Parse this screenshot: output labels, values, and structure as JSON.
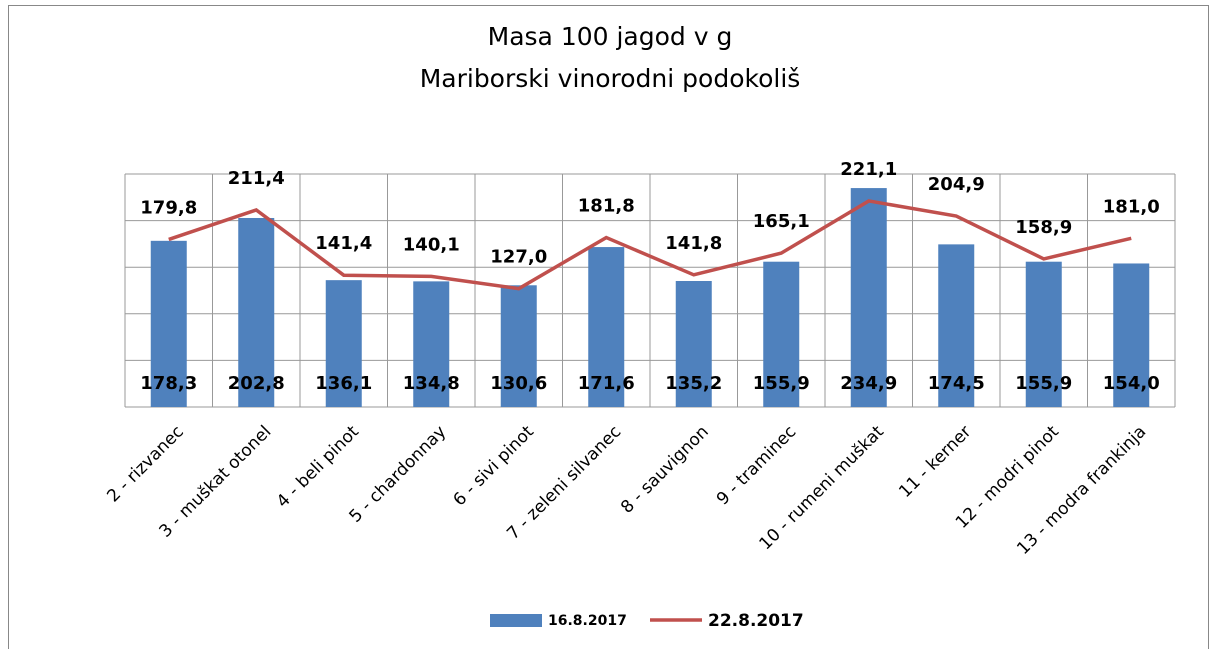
{
  "chart_data": {
    "type": "bar",
    "title": "Masa 100 jagod v g",
    "subtitle": "Mariborski vinorodni podokoliš",
    "categories": [
      "2 - rizvanec",
      "3 - muškat otonel",
      "4 - beli pinot",
      "5 - chardonnay",
      "6 - sivi pinot",
      "7 - zeleni silvanec",
      "8 - sauvignon",
      "9 - traminec",
      "10 - rumeni muškat",
      "11 - kerner",
      "12 - modri pinot",
      "13 - modra frankinja"
    ],
    "series": [
      {
        "name": "16.8.2017",
        "type": "bar",
        "color": "#4f81bd",
        "values": [
          178.3,
          202.8,
          136.1,
          134.8,
          130.6,
          171.6,
          135.2,
          155.9,
          234.9,
          174.5,
          155.9,
          154.0
        ],
        "value_labels": [
          "178,3",
          "202,8",
          "136,1",
          "134,8",
          "130,6",
          "171,6",
          "135,2",
          "155,9",
          "234,9",
          "174,5",
          "155,9",
          "154,0"
        ]
      },
      {
        "name": "22.8.2017",
        "type": "line",
        "color": "#c0504d",
        "values": [
          179.8,
          211.4,
          141.4,
          140.1,
          127.0,
          181.8,
          141.8,
          165.1,
          221.1,
          204.9,
          158.9,
          181.0
        ],
        "value_labels": [
          "179,8",
          "211,4",
          "141,4",
          "140,1",
          "127,0",
          "181,8",
          "141,8",
          "165,1",
          "221,1",
          "204,9",
          "158,9",
          "181,0"
        ]
      }
    ],
    "ylim": [
      0,
      250
    ],
    "yticks": [
      0,
      50,
      100,
      150,
      200,
      250
    ],
    "grid": true,
    "legend": "bottom"
  }
}
